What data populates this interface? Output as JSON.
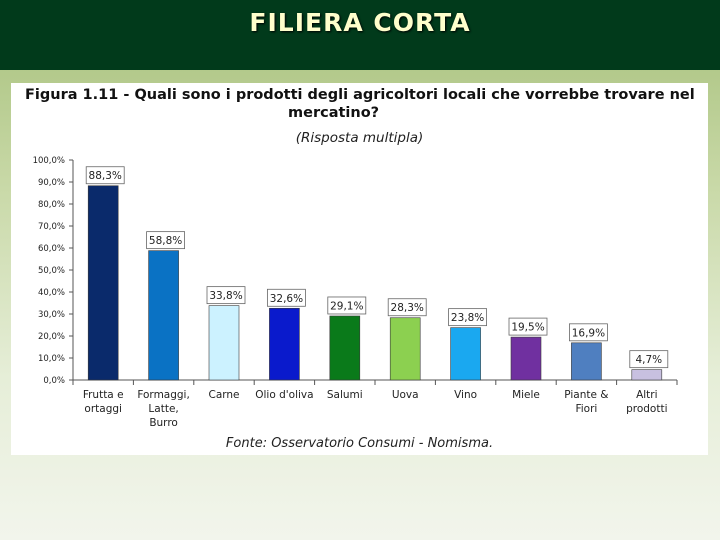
{
  "header": {
    "title": "FILIERA CORTA"
  },
  "figure": {
    "title_line1": "Figura 1.11 - Quali sono i prodotti degli agricoltori locali che vorrebbe trovare nel",
    "title_line2": "mercatino?",
    "subtitle": "(Risposta multipla)",
    "source": "Fonte: Osservatorio Consumi - Nomisma."
  },
  "chart_data": {
    "type": "bar",
    "title": "Figura 1.11 - Quali sono i prodotti degli agricoltori locali che vorrebbe trovare nel mercatino?",
    "subtitle": "(Risposta multipla)",
    "ylim": [
      0,
      100
    ],
    "yticks": [
      "0,0%",
      "10,0%",
      "20,0%",
      "30,0%",
      "40,0%",
      "50,0%",
      "60,0%",
      "70,0%",
      "80,0%",
      "90,0%",
      "100,0%"
    ],
    "categories": [
      [
        "Frutta e",
        "ortaggi"
      ],
      [
        "Formaggi,",
        "Latte,",
        "Burro"
      ],
      [
        "Carne"
      ],
      [
        "Olio d'oliva"
      ],
      [
        "Salumi"
      ],
      [
        "Uova"
      ],
      [
        "Vino"
      ],
      [
        "Miele"
      ],
      [
        "Piante &",
        "Fiori"
      ],
      [
        "Altri",
        "prodotti"
      ]
    ],
    "values": [
      88.3,
      58.8,
      33.8,
      32.6,
      29.1,
      28.3,
      23.8,
      19.5,
      16.9,
      4.7
    ],
    "labels": [
      "88,3%",
      "58,8%",
      "33,8%",
      "32,6%",
      "29,1%",
      "28,3%",
      "23,8%",
      "19,5%",
      "16,9%",
      "4,7%"
    ],
    "colors": [
      "#0a2a6b",
      "#0a72c4",
      "#ccf2ff",
      "#0a1acc",
      "#0a7a1a",
      "#8cd050",
      "#1aa8f0",
      "#7030a0",
      "#4f7fc0",
      "#c8c0e0"
    ]
  }
}
